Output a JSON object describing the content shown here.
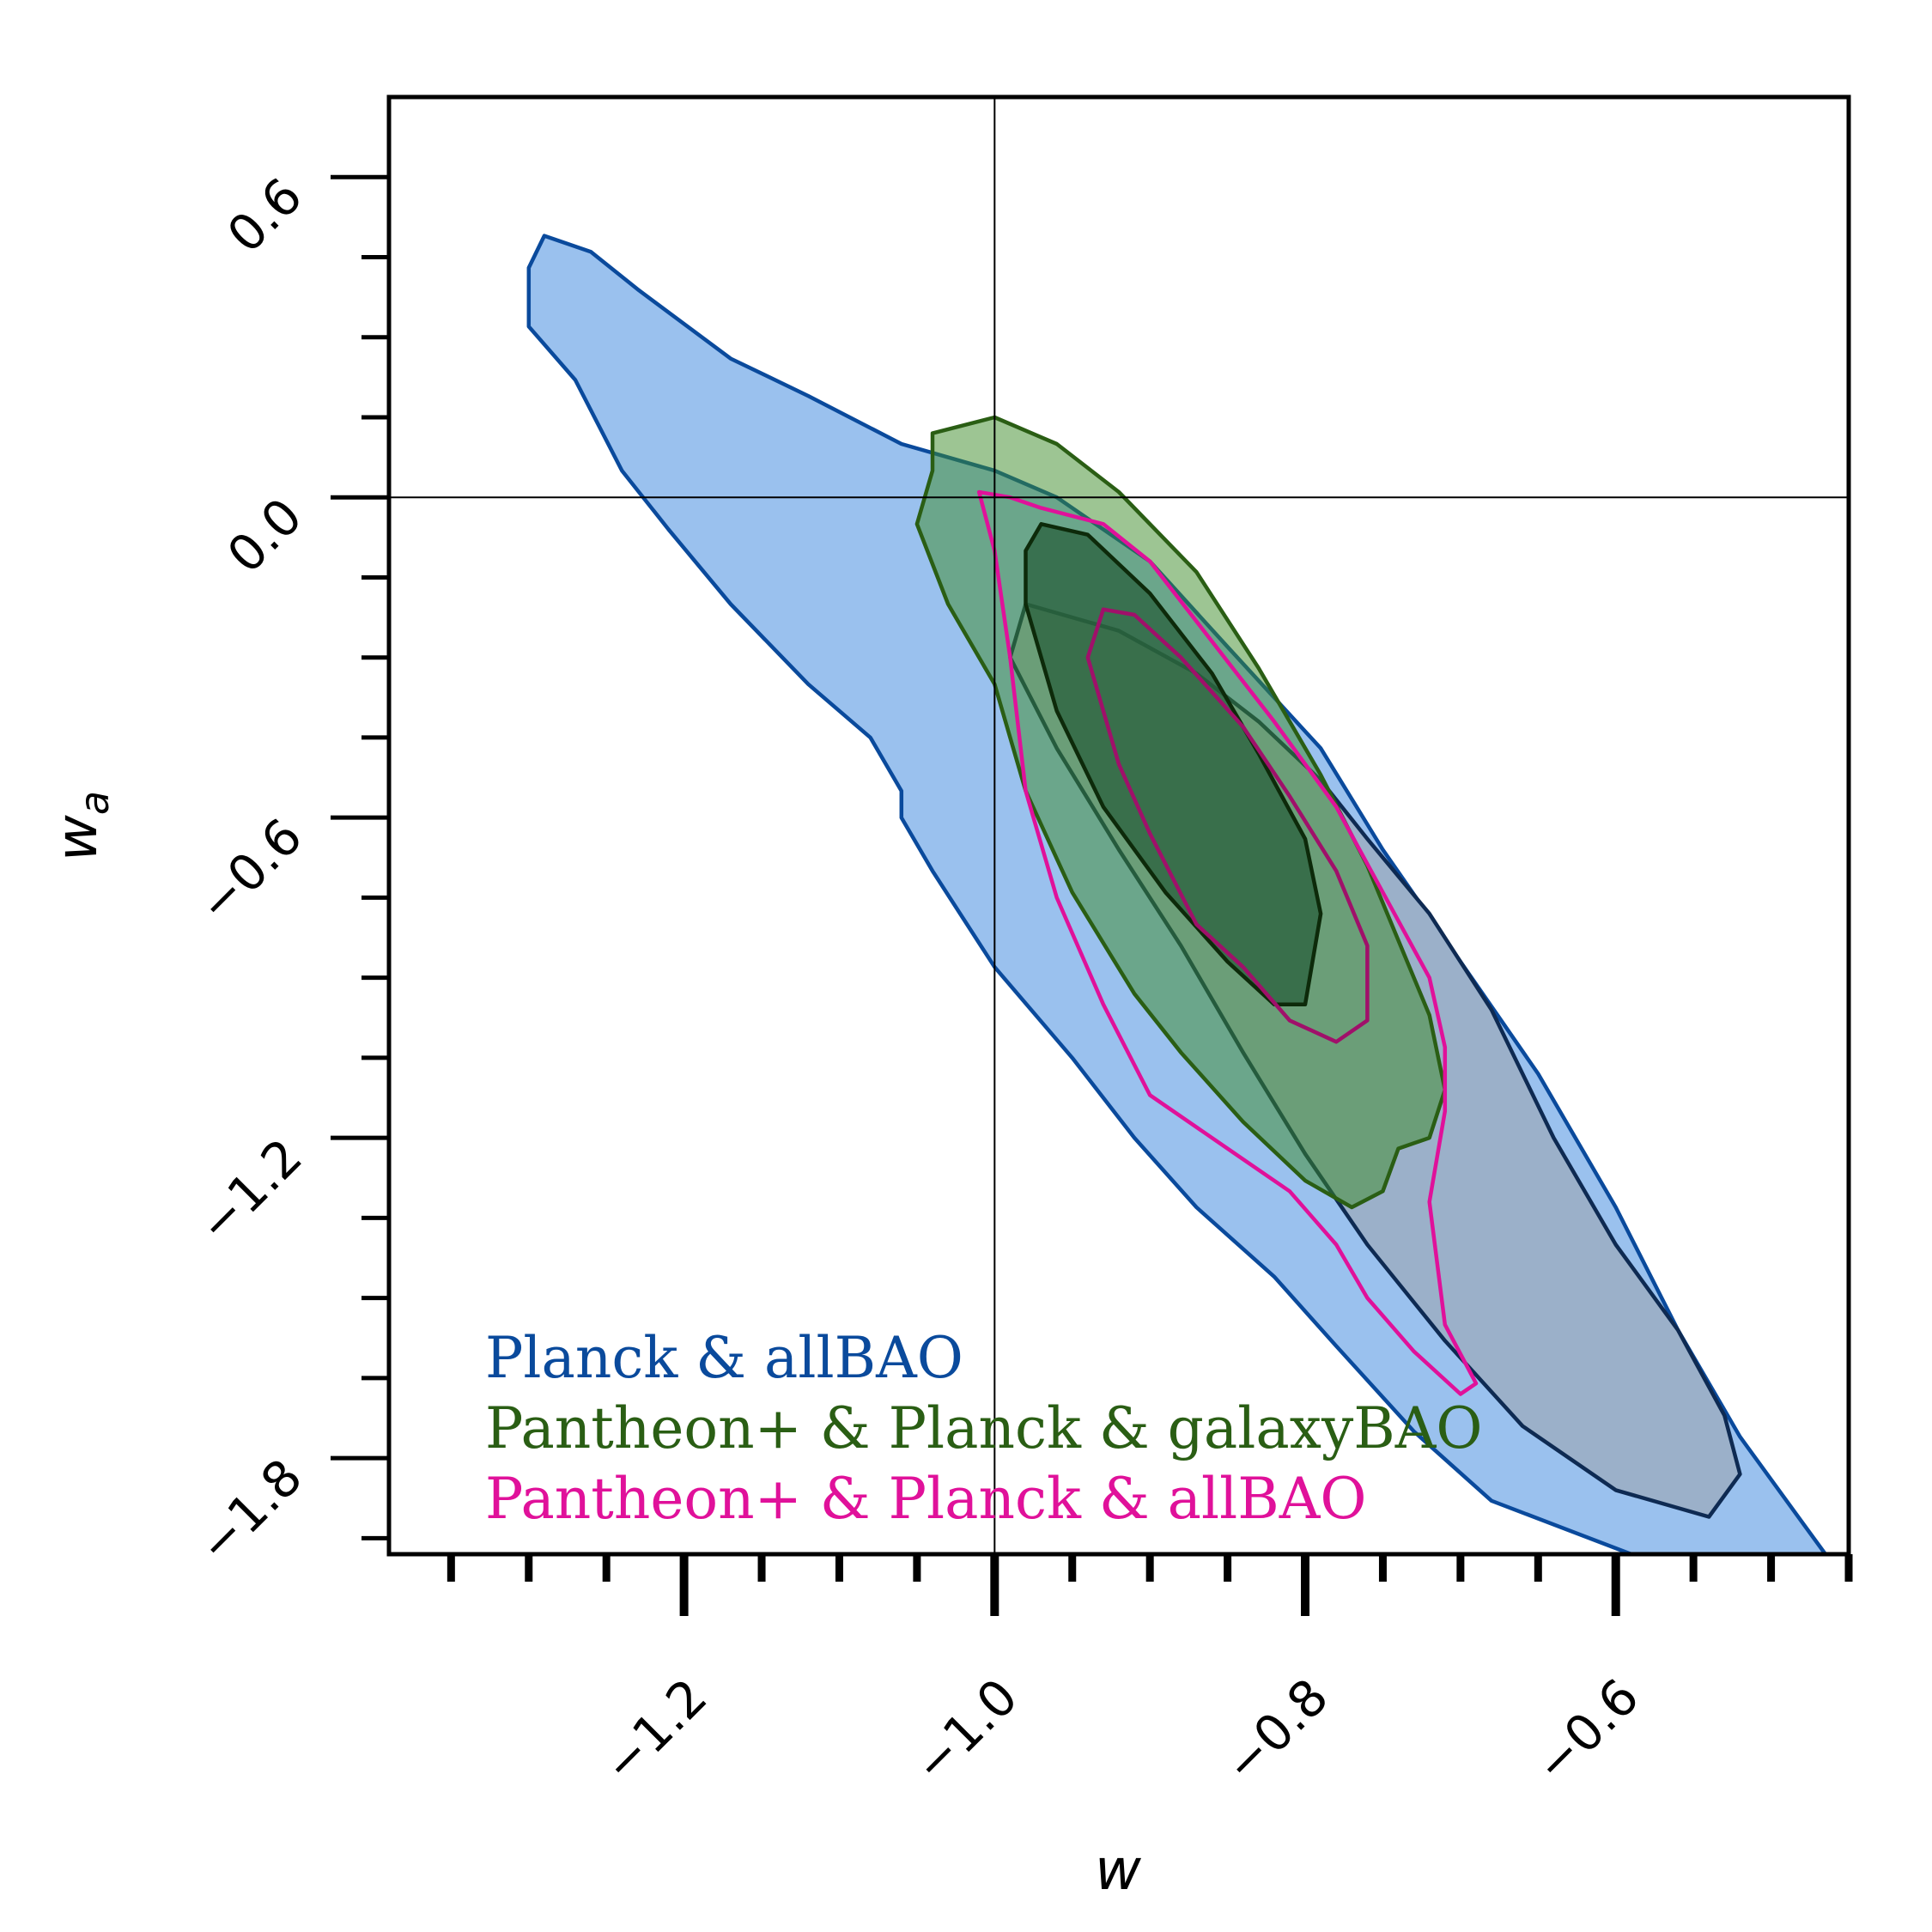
{
  "chart_data": {
    "type": "contour",
    "xlabel": "w",
    "ylabel_base": "w",
    "ylabel_sub": "a",
    "xlim": [
      -1.39,
      -0.45
    ],
    "ylim": [
      -1.98,
      0.75
    ],
    "x_major_ticks": [
      -1.2,
      -1.0,
      -0.8,
      -0.6
    ],
    "x_minor_ticks": [
      -1.35,
      -1.3,
      -1.25,
      -1.15,
      -1.1,
      -1.05,
      -0.95,
      -0.9,
      -0.85,
      -0.75,
      -0.7,
      -0.65,
      -0.55,
      -0.5,
      -0.45
    ],
    "x_tick_labels": [
      "−1.2",
      "−1.0",
      "−0.8",
      "−0.6"
    ],
    "y_major_ticks": [
      0.6,
      0.0,
      -0.6,
      -1.2,
      -1.8
    ],
    "y_minor_ticks": [
      0.45,
      0.3,
      0.15,
      -0.15,
      -0.3,
      -0.45,
      -0.75,
      -0.9,
      -1.05,
      -1.35,
      -1.5,
      -1.65,
      -1.95
    ],
    "y_tick_labels": [
      "0.6",
      "0.0",
      "−0.6",
      "−1.2",
      "−1.8"
    ],
    "reference_lines": {
      "w": -1.0,
      "wa": 0.0
    },
    "grid": false,
    "legend_position": "bottom-left",
    "series": [
      {
        "name": "Planck & allBAO",
        "color": "#0a4a9c",
        "fill_outer": "#9ac1ee",
        "fill_inner": "#9bb0c9",
        "inner_edge": "#0e2a52",
        "contour_95": [
          [
            -1.29,
            0.49
          ],
          [
            -1.26,
            0.46
          ],
          [
            -1.23,
            0.39
          ],
          [
            -1.17,
            0.26
          ],
          [
            -1.12,
            0.19
          ],
          [
            -1.06,
            0.1
          ],
          [
            -1.0,
            0.05
          ],
          [
            -0.96,
            0.0
          ],
          [
            -0.9,
            -0.12
          ],
          [
            -0.85,
            -0.28
          ],
          [
            -0.79,
            -0.47
          ],
          [
            -0.75,
            -0.66
          ],
          [
            -0.7,
            -0.87
          ],
          [
            -0.65,
            -1.08
          ],
          [
            -0.6,
            -1.33
          ],
          [
            -0.56,
            -1.56
          ],
          [
            -0.52,
            -1.76
          ],
          [
            -0.48,
            -1.92
          ],
          [
            -0.465,
            -1.98
          ],
          [
            -0.59,
            -1.98
          ],
          [
            -0.68,
            -1.88
          ],
          [
            -0.73,
            -1.75
          ],
          [
            -0.78,
            -1.59
          ],
          [
            -0.82,
            -1.46
          ],
          [
            -0.87,
            -1.33
          ],
          [
            -0.91,
            -1.2
          ],
          [
            -0.95,
            -1.05
          ],
          [
            -1.0,
            -0.88
          ],
          [
            -1.04,
            -0.7
          ],
          [
            -1.06,
            -0.6
          ],
          [
            -1.06,
            -0.55
          ],
          [
            -1.08,
            -0.45
          ],
          [
            -1.12,
            -0.35
          ],
          [
            -1.17,
            -0.2
          ],
          [
            -1.21,
            -0.06
          ],
          [
            -1.24,
            0.05
          ],
          [
            -1.27,
            0.22
          ],
          [
            -1.3,
            0.32
          ],
          [
            -1.3,
            0.43
          ]
        ],
        "contour_68": [
          [
            -0.98,
            -0.2
          ],
          [
            -0.92,
            -0.25
          ],
          [
            -0.87,
            -0.33
          ],
          [
            -0.83,
            -0.42
          ],
          [
            -0.79,
            -0.53
          ],
          [
            -0.76,
            -0.64
          ],
          [
            -0.72,
            -0.78
          ],
          [
            -0.68,
            -0.96
          ],
          [
            -0.64,
            -1.2
          ],
          [
            -0.6,
            -1.4
          ],
          [
            -0.56,
            -1.56
          ],
          [
            -0.53,
            -1.72
          ],
          [
            -0.52,
            -1.83
          ],
          [
            -0.54,
            -1.91
          ],
          [
            -0.6,
            -1.86
          ],
          [
            -0.66,
            -1.74
          ],
          [
            -0.71,
            -1.58
          ],
          [
            -0.76,
            -1.4
          ],
          [
            -0.8,
            -1.23
          ],
          [
            -0.84,
            -1.04
          ],
          [
            -0.88,
            -0.84
          ],
          [
            -0.92,
            -0.66
          ],
          [
            -0.96,
            -0.47
          ],
          [
            -0.99,
            -0.3
          ]
        ]
      },
      {
        "name": "Pantheon+ & Planck & galaxyBAO",
        "color": "#2a5e14",
        "fill_outer": "rgba(60,140,40,0.5)",
        "fill_inner": "rgba(40,95,60,0.75)",
        "inner_edge": "#0d2a0a",
        "contour_95": [
          [
            -1.04,
            0.12
          ],
          [
            -1.0,
            0.15
          ],
          [
            -0.96,
            0.1
          ],
          [
            -0.92,
            0.01
          ],
          [
            -0.87,
            -0.14
          ],
          [
            -0.83,
            -0.32
          ],
          [
            -0.79,
            -0.52
          ],
          [
            -0.76,
            -0.69
          ],
          [
            -0.74,
            -0.83
          ],
          [
            -0.72,
            -0.97
          ],
          [
            -0.71,
            -1.11
          ],
          [
            -0.72,
            -1.2
          ],
          [
            -0.74,
            -1.22
          ],
          [
            -0.75,
            -1.3
          ],
          [
            -0.77,
            -1.33
          ],
          [
            -0.8,
            -1.28
          ],
          [
            -0.84,
            -1.17
          ],
          [
            -0.88,
            -1.04
          ],
          [
            -0.91,
            -0.93
          ],
          [
            -0.95,
            -0.74
          ],
          [
            -0.98,
            -0.55
          ],
          [
            -1.0,
            -0.35
          ],
          [
            -1.03,
            -0.2
          ],
          [
            -1.05,
            -0.05
          ],
          [
            -1.04,
            0.05
          ]
        ],
        "contour_68": [
          [
            -0.97,
            -0.05
          ],
          [
            -0.94,
            -0.07
          ],
          [
            -0.9,
            -0.18
          ],
          [
            -0.86,
            -0.33
          ],
          [
            -0.83,
            -0.48
          ],
          [
            -0.8,
            -0.64
          ],
          [
            -0.79,
            -0.78
          ],
          [
            -0.8,
            -0.95
          ],
          [
            -0.82,
            -0.95
          ],
          [
            -0.85,
            -0.87
          ],
          [
            -0.89,
            -0.74
          ],
          [
            -0.93,
            -0.58
          ],
          [
            -0.96,
            -0.4
          ],
          [
            -0.98,
            -0.2
          ],
          [
            -0.98,
            -0.1
          ]
        ]
      },
      {
        "name": "Pantheon+ & Planck & allBAO",
        "color": "#e0119a",
        "fill_outer": "none",
        "fill_inner": "none",
        "inner_edge": "#a0106a",
        "contour_95": [
          [
            -1.01,
            0.01
          ],
          [
            -0.99,
            0.0
          ],
          [
            -0.97,
            -0.02
          ],
          [
            -0.93,
            -0.05
          ],
          [
            -0.9,
            -0.12
          ],
          [
            -0.86,
            -0.27
          ],
          [
            -0.82,
            -0.42
          ],
          [
            -0.78,
            -0.58
          ],
          [
            -0.75,
            -0.74
          ],
          [
            -0.72,
            -0.9
          ],
          [
            -0.71,
            -1.03
          ],
          [
            -0.71,
            -1.15
          ],
          [
            -0.72,
            -1.32
          ],
          [
            -0.71,
            -1.55
          ],
          [
            -0.69,
            -1.66
          ],
          [
            -0.7,
            -1.68
          ],
          [
            -0.73,
            -1.6
          ],
          [
            -0.76,
            -1.5
          ],
          [
            -0.78,
            -1.4
          ],
          [
            -0.81,
            -1.3
          ],
          [
            -0.85,
            -1.22
          ],
          [
            -0.9,
            -1.12
          ],
          [
            -0.93,
            -0.95
          ],
          [
            -0.96,
            -0.75
          ],
          [
            -0.98,
            -0.55
          ],
          [
            -0.99,
            -0.3
          ],
          [
            -1.0,
            -0.1
          ]
        ],
        "contour_68": [
          [
            -0.93,
            -0.21
          ],
          [
            -0.91,
            -0.22
          ],
          [
            -0.88,
            -0.3
          ],
          [
            -0.84,
            -0.43
          ],
          [
            -0.81,
            -0.56
          ],
          [
            -0.78,
            -0.7
          ],
          [
            -0.76,
            -0.84
          ],
          [
            -0.76,
            -0.98
          ],
          [
            -0.78,
            -1.02
          ],
          [
            -0.81,
            -0.98
          ],
          [
            -0.84,
            -0.88
          ],
          [
            -0.87,
            -0.8
          ],
          [
            -0.9,
            -0.63
          ],
          [
            -0.92,
            -0.5
          ],
          [
            -0.94,
            -0.3
          ]
        ]
      }
    ]
  }
}
